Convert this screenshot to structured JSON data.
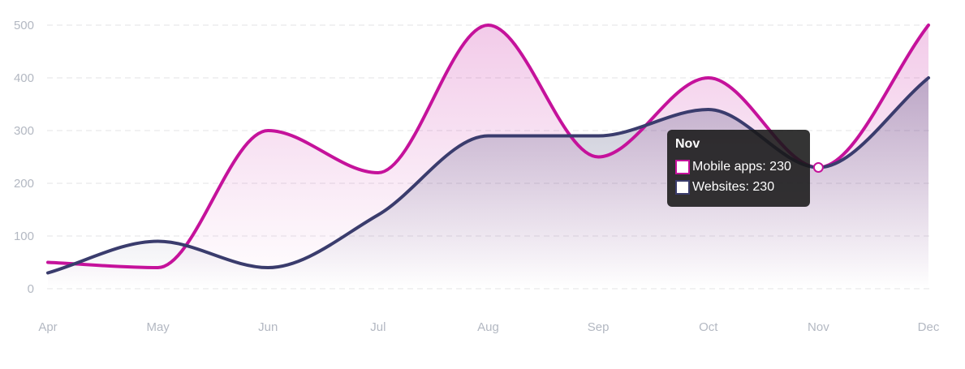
{
  "chart_data": {
    "type": "area",
    "categories": [
      "Apr",
      "May",
      "Jun",
      "Jul",
      "Aug",
      "Sep",
      "Oct",
      "Nov",
      "Dec"
    ],
    "series": [
      {
        "name": "Mobile apps",
        "values": [
          50,
          40,
          300,
          220,
          500,
          250,
          400,
          230,
          500
        ],
        "color": "#c5129b"
      },
      {
        "name": "Websites",
        "values": [
          30,
          90,
          40,
          140,
          290,
          290,
          340,
          230,
          400
        ],
        "color": "#3a3c6d"
      }
    ],
    "ylim": [
      0,
      500
    ],
    "yticks": [
      0,
      100,
      200,
      300,
      400,
      500
    ],
    "grid": true,
    "tooltip": {
      "title": "Nov",
      "rows": [
        {
          "label": "Mobile apps: 230",
          "color": "#c5129b"
        },
        {
          "label": "Websites: 230",
          "color": "#3a3c6d"
        }
      ]
    }
  }
}
